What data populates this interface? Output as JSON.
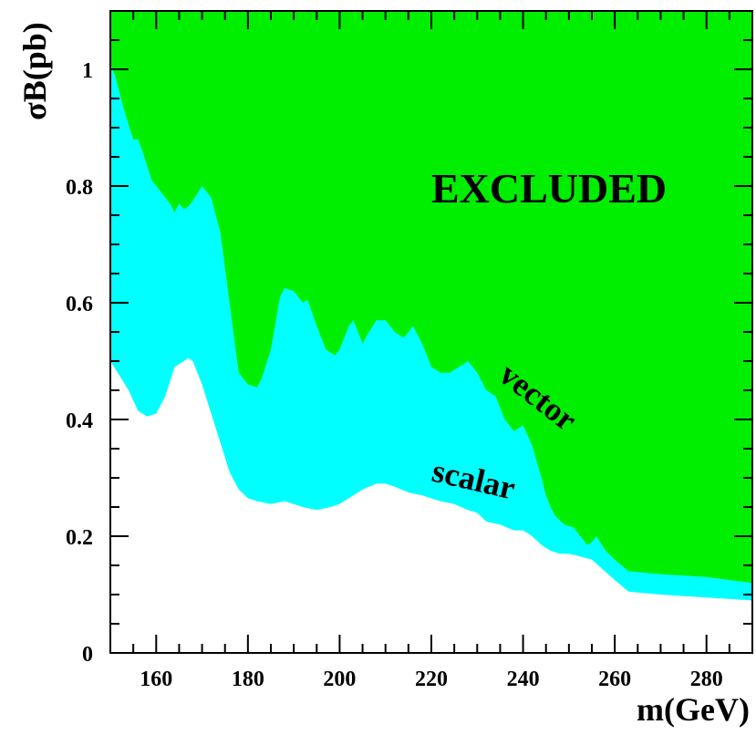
{
  "chart_data": {
    "type": "area",
    "xlabel": "m(GeV)",
    "ylabel": "σB(pb)",
    "xlim": [
      150,
      290
    ],
    "ylim": [
      0,
      1.1
    ],
    "x_ticks": [
      "160",
      "180",
      "200",
      "220",
      "240",
      "260",
      "280"
    ],
    "y_ticks": [
      "0",
      "0.2",
      "0.4",
      "0.6",
      "0.8",
      "1"
    ],
    "annotations": {
      "region": "EXCLUDED",
      "upper_curve": "vector",
      "lower_curve": "scalar"
    },
    "colors": {
      "excluded_region": "#00ee00",
      "between_region": "#00ffff",
      "below_region": "#ffffff"
    },
    "series": [
      {
        "name": "vector",
        "x": [
          150,
          151,
          153,
          155,
          156,
          157,
          159,
          161,
          163,
          164,
          165,
          166,
          167,
          168,
          170,
          172,
          174,
          176,
          178,
          180,
          182,
          183,
          185,
          187,
          188,
          190,
          192,
          193,
          195,
          197,
          199,
          200,
          202,
          203,
          205,
          206,
          208,
          210,
          212,
          214,
          216,
          218,
          220,
          222,
          224,
          226,
          228,
          230,
          232,
          234,
          236,
          238,
          240,
          242,
          244,
          245,
          246,
          247,
          249,
          251,
          253,
          254,
          255,
          256,
          258,
          260,
          263,
          270,
          280,
          290
        ],
        "y": [
          1.01,
          0.99,
          0.93,
          0.88,
          0.88,
          0.86,
          0.81,
          0.79,
          0.77,
          0.755,
          0.77,
          0.76,
          0.765,
          0.775,
          0.8,
          0.78,
          0.72,
          0.6,
          0.48,
          0.46,
          0.455,
          0.47,
          0.52,
          0.61,
          0.625,
          0.62,
          0.6,
          0.605,
          0.56,
          0.52,
          0.51,
          0.52,
          0.56,
          0.57,
          0.53,
          0.545,
          0.57,
          0.57,
          0.55,
          0.54,
          0.56,
          0.53,
          0.49,
          0.48,
          0.48,
          0.49,
          0.5,
          0.48,
          0.45,
          0.44,
          0.4,
          0.38,
          0.39,
          0.355,
          0.3,
          0.27,
          0.25,
          0.235,
          0.22,
          0.215,
          0.195,
          0.185,
          0.19,
          0.2,
          0.175,
          0.16,
          0.14,
          0.135,
          0.13,
          0.12
        ]
      },
      {
        "name": "scalar",
        "x": [
          150,
          152,
          154,
          156,
          158,
          160,
          162,
          164,
          166,
          167,
          168,
          170,
          172,
          174,
          176,
          178,
          180,
          182,
          185,
          188,
          192,
          195,
          198,
          200,
          202,
          205,
          208,
          210,
          212,
          215,
          218,
          220,
          222,
          225,
          228,
          230,
          232,
          235,
          238,
          240,
          242,
          244,
          246,
          248,
          250,
          255,
          260,
          263,
          270,
          280,
          290
        ],
        "y": [
          0.5,
          0.475,
          0.45,
          0.415,
          0.405,
          0.41,
          0.44,
          0.49,
          0.5,
          0.505,
          0.5,
          0.46,
          0.41,
          0.36,
          0.31,
          0.28,
          0.265,
          0.26,
          0.255,
          0.26,
          0.25,
          0.245,
          0.25,
          0.255,
          0.265,
          0.28,
          0.29,
          0.29,
          0.285,
          0.275,
          0.27,
          0.265,
          0.26,
          0.255,
          0.245,
          0.24,
          0.225,
          0.22,
          0.21,
          0.21,
          0.2,
          0.185,
          0.175,
          0.17,
          0.17,
          0.16,
          0.125,
          0.105,
          0.1,
          0.095,
          0.09
        ]
      }
    ]
  }
}
